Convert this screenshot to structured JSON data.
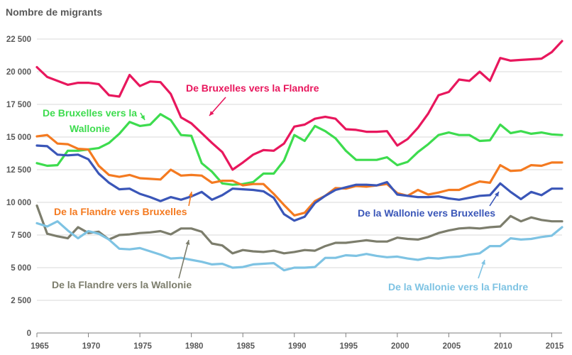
{
  "chart_data": {
    "type": "line",
    "ylabel": "Nombre de migrants",
    "ylim": [
      0,
      22500
    ],
    "yticks": [
      0,
      2500,
      5000,
      7500,
      10000,
      12500,
      15000,
      17500,
      20000,
      22500
    ],
    "ytick_labels": [
      "0",
      "2 500",
      "5 000",
      "7 500",
      "10 000",
      "12 500",
      "15 000",
      "17 500",
      "20 000",
      "22 500"
    ],
    "xlim": [
      1965,
      2016
    ],
    "xticks": [
      1965,
      1970,
      1975,
      1980,
      1985,
      1990,
      1995,
      2000,
      2005,
      2010,
      2015
    ],
    "xtick_labels": [
      "1965",
      "1970",
      "1975",
      "1980",
      "1985",
      "1990",
      "1995",
      "2000",
      "2005",
      "2010",
      "2015"
    ],
    "grid": "horizontal",
    "x": [
      1965,
      1966,
      1967,
      1968,
      1969,
      1970,
      1971,
      1972,
      1973,
      1974,
      1975,
      1976,
      1977,
      1978,
      1979,
      1980,
      1981,
      1982,
      1983,
      1984,
      1985,
      1986,
      1987,
      1988,
      1989,
      1990,
      1991,
      1992,
      1993,
      1994,
      1995,
      1996,
      1997,
      1998,
      1999,
      2000,
      2001,
      2002,
      2003,
      2004,
      2005,
      2006,
      2007,
      2008,
      2009,
      2010,
      2011,
      2012,
      2013,
      2014,
      2015,
      2016
    ],
    "series": [
      {
        "name": "De Bruxelles vers la Flandre",
        "color": "#e8175d",
        "values": [
          20350,
          19600,
          19300,
          19000,
          19150,
          19150,
          19050,
          18200,
          18100,
          19750,
          18900,
          19250,
          19200,
          18300,
          16500,
          16050,
          15300,
          14550,
          13850,
          12500,
          13050,
          13650,
          14000,
          13950,
          14500,
          15800,
          15950,
          16400,
          16550,
          16400,
          15600,
          15550,
          15400,
          15400,
          15450,
          14350,
          14850,
          15700,
          16800,
          18200,
          18450,
          19400,
          19300,
          20000,
          19300,
          21050,
          20850,
          20900,
          20950,
          21000,
          21500,
          22350
        ]
      },
      {
        "name": "De Bruxelles vers la Wallonie",
        "color": "#3ddc4e",
        "values": [
          13000,
          12800,
          12850,
          13950,
          13950,
          14050,
          14150,
          14550,
          15250,
          16150,
          15850,
          15950,
          16750,
          16300,
          15150,
          15100,
          13000,
          12350,
          11450,
          11350,
          11400,
          11550,
          12200,
          12200,
          13200,
          15150,
          14700,
          15850,
          15450,
          14900,
          13950,
          13250,
          13250,
          13250,
          13450,
          12850,
          13100,
          13850,
          14450,
          15150,
          15350,
          15150,
          15150,
          14700,
          14750,
          15950,
          15300,
          15450,
          15250,
          15350,
          15200,
          15150
        ]
      },
      {
        "name": "De la Flandre vers Bruxelles",
        "color": "#f47a20",
        "values": [
          15050,
          15150,
          14500,
          14450,
          14100,
          14050,
          12800,
          12100,
          11950,
          12100,
          11850,
          11800,
          11750,
          12500,
          12050,
          12100,
          12050,
          11500,
          11650,
          11650,
          11300,
          11400,
          11400,
          10650,
          9800,
          9000,
          9200,
          10100,
          10500,
          11100,
          11050,
          11250,
          11200,
          11300,
          11400,
          10700,
          10500,
          10950,
          10600,
          10750,
          10950,
          10950,
          11300,
          11600,
          11500,
          12850,
          12400,
          12450,
          12850,
          12800,
          13050,
          13050
        ]
      },
      {
        "name": "De la Wallonie vers Bruxelles",
        "color": "#3a56b8",
        "values": [
          14350,
          14300,
          13650,
          13600,
          13650,
          13300,
          12200,
          11500,
          11000,
          11050,
          10650,
          10400,
          10100,
          10400,
          10200,
          10450,
          10800,
          10200,
          10550,
          11050,
          11000,
          10950,
          10850,
          10350,
          9100,
          8600,
          8900,
          9950,
          10500,
          10950,
          11150,
          11350,
          11350,
          11300,
          11550,
          10600,
          10500,
          10400,
          10400,
          10450,
          10300,
          10200,
          10350,
          10500,
          10550,
          11450,
          10800,
          10250,
          10800,
          10550,
          11050,
          11050
        ]
      },
      {
        "name": "De la Flandre vers la Wallonie",
        "color": "#7c7d6c",
        "values": [
          9750,
          7600,
          7400,
          7250,
          8100,
          7650,
          7750,
          7150,
          7500,
          7550,
          7650,
          7700,
          7800,
          7550,
          8000,
          8000,
          7750,
          6850,
          6700,
          6100,
          6350,
          6250,
          6200,
          6300,
          6100,
          6200,
          6350,
          6300,
          6650,
          6900,
          6900,
          7000,
          7100,
          7000,
          7000,
          7300,
          7200,
          7150,
          7350,
          7650,
          7850,
          8000,
          8050,
          8000,
          8100,
          8150,
          8950,
          8550,
          8850,
          8650,
          8550,
          8550
        ]
      },
      {
        "name": "De la Wallonie vers la Flandre",
        "color": "#7ec3e3",
        "values": [
          8400,
          8150,
          8550,
          7850,
          7250,
          7800,
          7600,
          7150,
          6450,
          6400,
          6500,
          6250,
          6000,
          5700,
          5750,
          5600,
          5450,
          5250,
          5300,
          5000,
          5050,
          5250,
          5300,
          5350,
          4800,
          5000,
          5000,
          5050,
          5750,
          5750,
          5950,
          5900,
          6050,
          5900,
          5800,
          5850,
          5700,
          5600,
          5750,
          5700,
          5800,
          5850,
          6000,
          6100,
          6650,
          6650,
          7250,
          7150,
          7200,
          7350,
          7450,
          8100
        ]
      }
    ],
    "annotations": [
      {
        "text": "De Bruxelles vers la Flandre",
        "series": 0
      },
      {
        "text": "De Bruxelles vers la",
        "series": 1
      },
      {
        "text": "Wallonie",
        "series": 1
      },
      {
        "text": "De la Flandre vers Bruxelles",
        "series": 2
      },
      {
        "text": "De la Wallonie vers Bruxelles",
        "series": 3
      },
      {
        "text": "De la Flandre vers la Wallonie",
        "series": 4
      },
      {
        "text": "De la Wallonie vers la Flandre",
        "series": 5
      }
    ]
  }
}
